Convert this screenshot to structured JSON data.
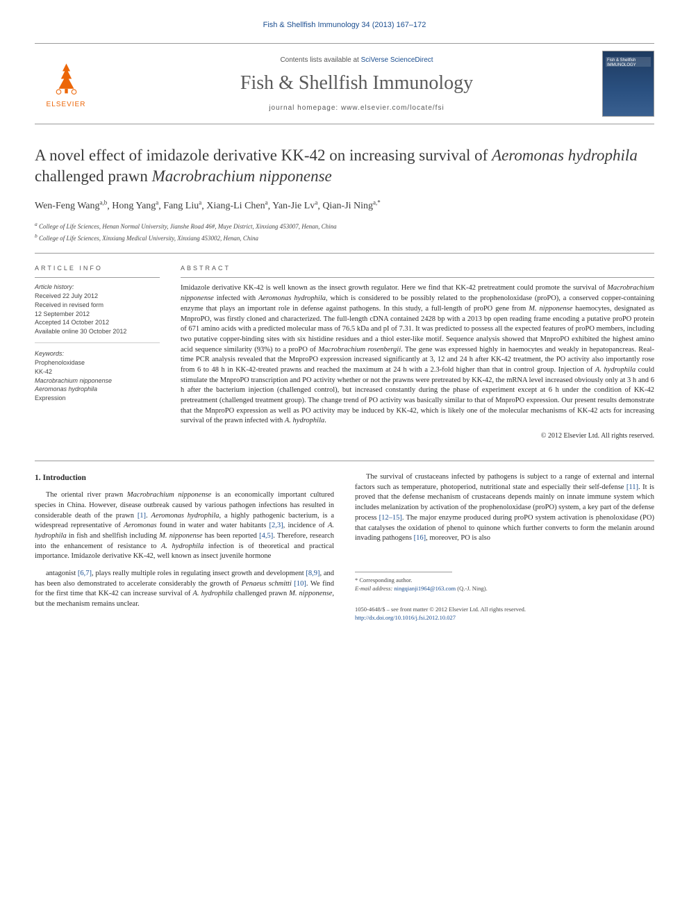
{
  "header": {
    "journal_ref": "Fish & Shellfish Immunology 34 (2013) 167–172",
    "contents_line_prefix": "Contents lists available at ",
    "contents_line_link": "SciVerse ScienceDirect",
    "journal_title": "Fish & Shellfish Immunology",
    "homepage_prefix": "journal homepage: ",
    "homepage_url": "www.elsevier.com/locate/fsi",
    "elsevier_label": "ELSEVIER",
    "cover_label": "Fish & Shellfish IMMUNOLOGY"
  },
  "article": {
    "title_part1": "A novel effect of imidazole derivative KK-42 on increasing survival of ",
    "title_italic1": "Aeromonas hydrophila",
    "title_part2": " challenged prawn ",
    "title_italic2": "Macrobrachium nipponense",
    "authors_html": "Wen-Feng Wang",
    "authors": [
      {
        "name": "Wen-Feng Wang",
        "aff": "a,b"
      },
      {
        "name": "Hong Yang",
        "aff": "a"
      },
      {
        "name": "Fang Liu",
        "aff": "a"
      },
      {
        "name": "Xiang-Li Chen",
        "aff": "a"
      },
      {
        "name": "Yan-Jie Lv",
        "aff": "a"
      },
      {
        "name": "Qian-Ji Ning",
        "aff": "a,*"
      }
    ],
    "affiliations": [
      "a College of Life Sciences, Henan Normal University, Jianshe Road 46#, Muye District, Xinxiang 453007, Henan, China",
      "b College of Life Sciences, Xinxiang Medical University, Xinxiang 453002, Henan, China"
    ]
  },
  "info": {
    "heading": "ARTICLE INFO",
    "history_label": "Article history:",
    "history": [
      "Received 22 July 2012",
      "Received in revised form",
      "12 September 2012",
      "Accepted 14 October 2012",
      "Available online 30 October 2012"
    ],
    "keywords_label": "Keywords:",
    "keywords": [
      "Prophenoloxidase",
      "KK-42",
      "Macrobrachium nipponense",
      "Aeromonas hydrophila",
      "Expression"
    ],
    "keywords_italic_idx": [
      2,
      3
    ]
  },
  "abstract": {
    "heading": "ABSTRACT",
    "text_parts": [
      {
        "t": "Imidazole derivative KK-42 is well known as the insect growth regulator. Here we find that KK-42 pretreatment could promote the survival of "
      },
      {
        "t": "Macrobrachium nipponense",
        "i": true
      },
      {
        "t": " infected with "
      },
      {
        "t": "Aeromonas hydrophila",
        "i": true
      },
      {
        "t": ", which is considered to be possibly related to the prophenoloxidase (proPO), a conserved copper-containing enzyme that plays an important role in defense against pathogens. In this study, a full-length of proPO gene from "
      },
      {
        "t": "M. nipponense",
        "i": true
      },
      {
        "t": " haemocytes, designated as MnproPO, was firstly cloned and characterized. The full-length cDNA contained 2428 bp with a 2013 bp open reading frame encoding a putative proPO protein of 671 amino acids with a predicted molecular mass of 76.5 kDa and pI of 7.31. It was predicted to possess all the expected features of proPO members, including two putative copper-binding sites with six histidine residues and a thiol ester-like motif. Sequence analysis showed that MnproPO exhibited the highest amino acid sequence similarity (93%) to a proPO of "
      },
      {
        "t": "Macrobrachium rosenbergii",
        "i": true
      },
      {
        "t": ". The gene was expressed highly in haemocytes and weakly in hepatopancreas. Real-time PCR analysis revealed that the MnproPO expression increased significantly at 3, 12 and 24 h after KK-42 treatment, the PO activity also importantly rose from 6 to 48 h in KK-42-treated prawns and reached the maximum at 24 h with a 2.3-fold higher than that in control group. Injection of "
      },
      {
        "t": "A. hydrophila",
        "i": true
      },
      {
        "t": " could stimulate the MnproPO transcription and PO activity whether or not the prawns were pretreated by KK-42, the mRNA level increased obviously only at 3 h and 6 h after the bacterium injection (challenged control), but increased constantly during the phase of experiment except at 6 h under the condition of KK-42 pretreatment (challenged treatment group). The change trend of PO activity was basically similar to that of MnproPO expression. Our present results demonstrate that the MnproPO expression as well as PO activity may be induced by KK-42, which is likely one of the molecular mechanisms of KK-42 acts for increasing survival of the prawn infected with "
      },
      {
        "t": "A. hydrophila",
        "i": true
      },
      {
        "t": "."
      }
    ],
    "copyright": "© 2012 Elsevier Ltd. All rights reserved."
  },
  "body": {
    "section_title": "1. Introduction",
    "paragraphs": [
      [
        {
          "t": "The oriental river prawn "
        },
        {
          "t": "Macrobrachium nipponense",
          "i": true
        },
        {
          "t": " is an economically important cultured species in China. However, disease outbreak caused by various pathogen infections has resulted in considerable death of the prawn "
        },
        {
          "t": "[1]",
          "r": true
        },
        {
          "t": ". "
        },
        {
          "t": "Aeromonas hydrophila",
          "i": true
        },
        {
          "t": ", a highly pathogenic bacterium, is a widespread representative of "
        },
        {
          "t": "Aeromonas",
          "i": true
        },
        {
          "t": " found in water and water habitants "
        },
        {
          "t": "[2,3]",
          "r": true
        },
        {
          "t": ", incidence of "
        },
        {
          "t": "A. hydrophila",
          "i": true
        },
        {
          "t": " in fish and shellfish including "
        },
        {
          "t": "M. nipponense",
          "i": true
        },
        {
          "t": " has been reported "
        },
        {
          "t": "[4,5]",
          "r": true
        },
        {
          "t": ". Therefore, research into the enhancement of resistance to "
        },
        {
          "t": "A. hydrophila",
          "i": true
        },
        {
          "t": " infection is of theoretical and practical importance. Imidazole derivative KK-42, well known as insect juvenile hormone "
        }
      ],
      [
        {
          "t": "antagonist "
        },
        {
          "t": "[6,7]",
          "r": true
        },
        {
          "t": ", plays really multiple roles in regulating insect growth and development "
        },
        {
          "t": "[8,9]",
          "r": true
        },
        {
          "t": ", and has been also demonstrated to accelerate considerably the growth of "
        },
        {
          "t": "Penaeus schmitti",
          "i": true
        },
        {
          "t": " "
        },
        {
          "t": "[10]",
          "r": true
        },
        {
          "t": ". We find for the first time that KK-42 can increase survival of "
        },
        {
          "t": "A. hydrophila",
          "i": true
        },
        {
          "t": " challenged prawn "
        },
        {
          "t": "M. nipponense",
          "i": true
        },
        {
          "t": ", but the mechanism remains unclear."
        }
      ],
      [
        {
          "t": "The survival of crustaceans infected by pathogens is subject to a range of external and internal factors such as temperature, photoperiod, nutritional state and especially their self-defense "
        },
        {
          "t": "[11]",
          "r": true
        },
        {
          "t": ". It is proved that the defense mechanism of crustaceans depends mainly on innate immune system which includes melanization by activation of the prophenoloxidase (proPO) system, a key part of the defense process "
        },
        {
          "t": "[12–15]",
          "r": true
        },
        {
          "t": ". The major enzyme produced during proPO system activation is phenoloxidase (PO) that catalyses the oxidation of phenol to quinone which further converts to form the melanin around invading pathogens "
        },
        {
          "t": "[16]",
          "r": true
        },
        {
          "t": ", moreover, PO is also"
        }
      ]
    ]
  },
  "footer": {
    "corresponding_label": "* Corresponding author.",
    "email_label": "E-mail address:",
    "email": "ningqianji1964@163.com",
    "email_owner": "(Q.-J. Ning).",
    "issn_line": "1050-4648/$ – see front matter © 2012 Elsevier Ltd. All rights reserved.",
    "doi": "http://dx.doi.org/10.1016/j.fsi.2012.10.027"
  },
  "colors": {
    "link": "#1a4d8f",
    "elsevier_orange": "#ec6608",
    "text": "#2a2a2a",
    "muted": "#555555"
  }
}
